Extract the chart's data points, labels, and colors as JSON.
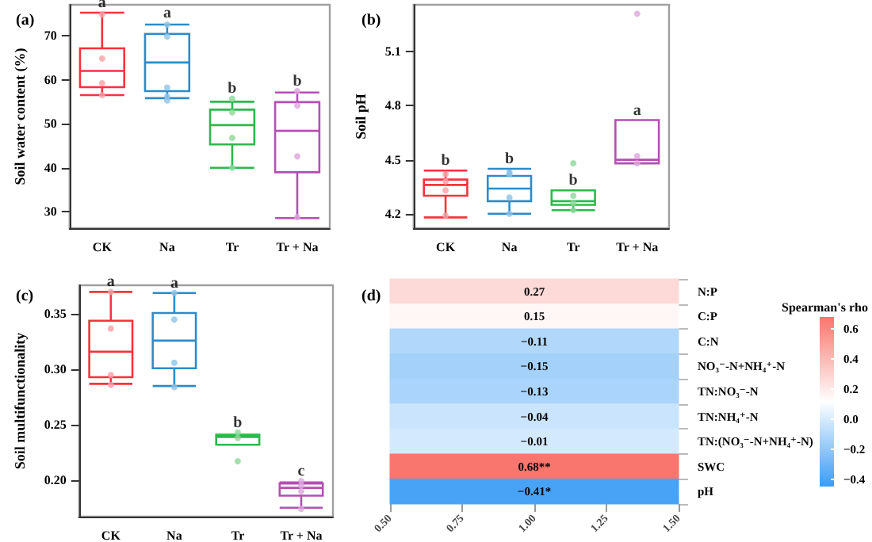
{
  "chart_data": [
    {
      "type": "box",
      "title": "(a)",
      "ylabel": "Soil water content (%)",
      "categories": [
        "CK",
        "Na",
        "Tr",
        "Tr + Na"
      ],
      "colors": [
        "#f8333c",
        "#2e8bc9",
        "#2eb84b",
        "#b44fb4"
      ],
      "boxes": [
        {
          "low": 56.5,
          "q1": 58.3,
          "median": 62.0,
          "q3": 67.1,
          "high": 75.2
        },
        {
          "low": 55.8,
          "q1": 57.4,
          "median": 63.9,
          "q3": 70.4,
          "high": 72.5
        },
        {
          "low": 40.0,
          "q1": 45.3,
          "median": 49.7,
          "q3": 53.2,
          "high": 55.0
        },
        {
          "low": 28.6,
          "q1": 39.0,
          "median": 48.4,
          "q3": 54.9,
          "high": 57.1
        }
      ],
      "series": [
        {
          "type": "scatter",
          "x": [
            "CK",
            "CK",
            "CK",
            "CK",
            "Na",
            "Na",
            "Na",
            "Na",
            "Na",
            "Tr",
            "Tr",
            "Tr",
            "Tr",
            "Tr + Na",
            "Tr + Na",
            "Tr + Na",
            "Tr + Na"
          ],
          "values": [
            74.8,
            64.8,
            59.2,
            56.5,
            72.5,
            69.8,
            58.2,
            55.3,
            56.2,
            55.7,
            52.6,
            46.8,
            40.0,
            57.4,
            54.1,
            42.6,
            28.8
          ],
          "colors": [
            "#f7a1a8",
            "#f7a1a8",
            "#f7a1a8",
            "#f7a1a8",
            "#8ec3e6",
            "#8ec3e6",
            "#8ec3e6",
            "#8ec3e6",
            "#8ec3e6",
            "#8fd79b",
            "#8fd79b",
            "#8fd79b",
            "#8fd79b",
            "#dba6dc",
            "#dba6dc",
            "#dba6dc",
            "#dba6dc"
          ]
        }
      ],
      "annotations": [
        {
          "text": "a",
          "x": "CK",
          "y": 75.2
        },
        {
          "text": "a",
          "x": "Na",
          "y": 72.8
        },
        {
          "text": "b",
          "x": "Tr",
          "y": 55.7
        },
        {
          "text": "b",
          "x": "Tr + Na",
          "y": 57.4
        }
      ],
      "ylim": [
        26.3,
        77
      ],
      "yticks": [
        30,
        40,
        50,
        60,
        70
      ]
    },
    {
      "type": "box",
      "title": "(b)",
      "ylabel": "Soil pH",
      "categories": [
        "CK",
        "Na",
        "Tr",
        "Tr + Na"
      ],
      "colors": [
        "#f8333c",
        "#2e8bc9",
        "#2eb84b",
        "#b44fb4"
      ],
      "boxes": [
        {
          "low": 4.18,
          "q1": 4.3,
          "median": 4.36,
          "q3": 4.39,
          "high": 4.44
        },
        {
          "low": 4.2,
          "q1": 4.27,
          "median": 4.34,
          "q3": 4.41,
          "high": 4.45
        },
        {
          "low": 4.22,
          "q1": 4.25,
          "median": 4.27,
          "q3": 4.33,
          "high": 4.33
        },
        {
          "low": 4.48,
          "q1": 4.48,
          "median": 4.5,
          "q3": 4.72,
          "high": 4.72
        }
      ],
      "series": [
        {
          "type": "scatter",
          "x": [
            "CK",
            "CK",
            "CK",
            "CK",
            "Na",
            "Na",
            "Na",
            "Na",
            "Tr",
            "Tr",
            "Tr",
            "Tr",
            "Tr + Na",
            "Tr + Na",
            "Tr + Na"
          ],
          "values": [
            4.19,
            4.33,
            4.38,
            4.42,
            4.42,
            4.43,
            4.29,
            4.2,
            4.3,
            4.26,
            4.22,
            4.48,
            4.52,
            4.48,
            5.31
          ],
          "colors": [
            "#f7a1a8",
            "#f7a1a8",
            "#f7a1a8",
            "#f7a1a8",
            "#8ec3e6",
            "#8ec3e6",
            "#8ec3e6",
            "#8ec3e6",
            "#8fd79b",
            "#8fd79b",
            "#8fd79b",
            "#8fd79b",
            "#dba6dc",
            "#dba6dc",
            "#dba6dc"
          ]
        }
      ],
      "annotations": [
        {
          "text": "b",
          "x": "CK",
          "y": 4.44
        },
        {
          "text": "b",
          "x": "Na",
          "y": 4.45
        },
        {
          "text": "b",
          "x": "Tr",
          "y": 4.33
        },
        {
          "text": "a",
          "x": "Tr + Na",
          "y": 4.72
        }
      ],
      "ylim": [
        4.12,
        5.36
      ],
      "yticks": [
        4.2,
        4.5,
        4.8,
        5.1
      ]
    },
    {
      "type": "box",
      "title": "(c)",
      "ylabel": "Soil multifunctionality",
      "categories": [
        "CK",
        "Na",
        "Tr",
        "Tr + Na"
      ],
      "colors": [
        "#f8333c",
        "#2e8bc9",
        "#2eb84b",
        "#b44fb4"
      ],
      "boxes": [
        {
          "low": 0.287,
          "q1": 0.293,
          "median": 0.316,
          "q3": 0.344,
          "high": 0.37
        },
        {
          "low": 0.285,
          "q1": 0.301,
          "median": 0.326,
          "q3": 0.351,
          "high": 0.369
        },
        {
          "low": 0.232,
          "q1": 0.232,
          "median": 0.239,
          "q3": 0.241,
          "high": 0.241
        },
        {
          "low": 0.175,
          "q1": 0.186,
          "median": 0.193,
          "q3": 0.197,
          "high": 0.198
        }
      ],
      "series": [
        {
          "type": "scatter",
          "x": [
            "CK",
            "CK",
            "CK",
            "CK",
            "Na",
            "Na",
            "Na",
            "Na",
            "Tr",
            "Tr",
            "Tr",
            "Tr + Na",
            "Tr + Na",
            "Tr + Na",
            "Tr + Na"
          ],
          "values": [
            0.37,
            0.337,
            0.295,
            0.286,
            0.369,
            0.345,
            0.306,
            0.284,
            0.217,
            0.243,
            0.238,
            0.199,
            0.195,
            0.19,
            0.174
          ],
          "colors": [
            "#f7a1a8",
            "#f7a1a8",
            "#f7a1a8",
            "#f7a1a8",
            "#8ec3e6",
            "#8ec3e6",
            "#8ec3e6",
            "#8ec3e6",
            "#8fd79b",
            "#8fd79b",
            "#8fd79b",
            "#dba6dc",
            "#dba6dc",
            "#dba6dc",
            "#dba6dc"
          ]
        }
      ],
      "annotations": [
        {
          "text": "a",
          "x": "CK",
          "y": 0.37
        },
        {
          "text": "a",
          "x": "Na",
          "y": 0.369
        },
        {
          "text": "b",
          "x": "Tr",
          "y": 0.243
        },
        {
          "text": "c",
          "x": "Tr + Na",
          "y": 0.199
        }
      ],
      "ylim": [
        0.167,
        0.376
      ],
      "yticks": [
        {
          "value": 0.2,
          "label": "0.20"
        },
        {
          "value": 0.25,
          "label": "0.25"
        },
        {
          "value": 0.3,
          "label": "0.30"
        },
        {
          "value": 0.35,
          "label": "0.35"
        }
      ]
    },
    {
      "type": "heatmap",
      "title": "(d)",
      "y_categories": [
        "N:P",
        "C:P",
        "C:N",
        "NO₃⁻-N+NH₄⁺-N",
        "TN:NO₃⁻-N",
        "TN:NH₄⁺-N",
        "TN:(NO₃⁻-N+NH₄⁺-N)",
        "SWC",
        "pH"
      ],
      "cells": [
        [
          0.27
        ],
        [
          0.15
        ],
        [
          -0.11
        ],
        [
          -0.15
        ],
        [
          -0.13
        ],
        [
          -0.04
        ],
        [
          -0.01
        ],
        [
          0.68
        ],
        [
          -0.41
        ]
      ],
      "cell_labels": [
        [
          "0.27"
        ],
        [
          "0.15"
        ],
        [
          "−0.11"
        ],
        [
          "−0.15"
        ],
        [
          "−0.13"
        ],
        [
          "−0.04"
        ],
        [
          "−0.01"
        ],
        [
          "0.68**"
        ],
        [
          "−0.41*"
        ]
      ],
      "clabel": "Spearman's rho",
      "clim": [
        -0.45,
        0.68
      ],
      "cticks": [
        {
          "value": -0.4,
          "label": "−0.4"
        },
        {
          "value": -0.2,
          "label": "−0.2"
        },
        {
          "value": 0,
          "label": "0.0"
        },
        0.2,
        0.4,
        0.6
      ],
      "xlim": [
        0.5,
        1.5
      ],
      "xticks": [
        {
          "value": 0.5,
          "label": "0.50"
        },
        {
          "value": 0.75,
          "label": "0.75"
        },
        {
          "value": 1,
          "label": "1.00"
        },
        {
          "value": 1.25,
          "label": "1.25"
        },
        {
          "value": 1.5,
          "label": "1.50"
        }
      ]
    }
  ]
}
